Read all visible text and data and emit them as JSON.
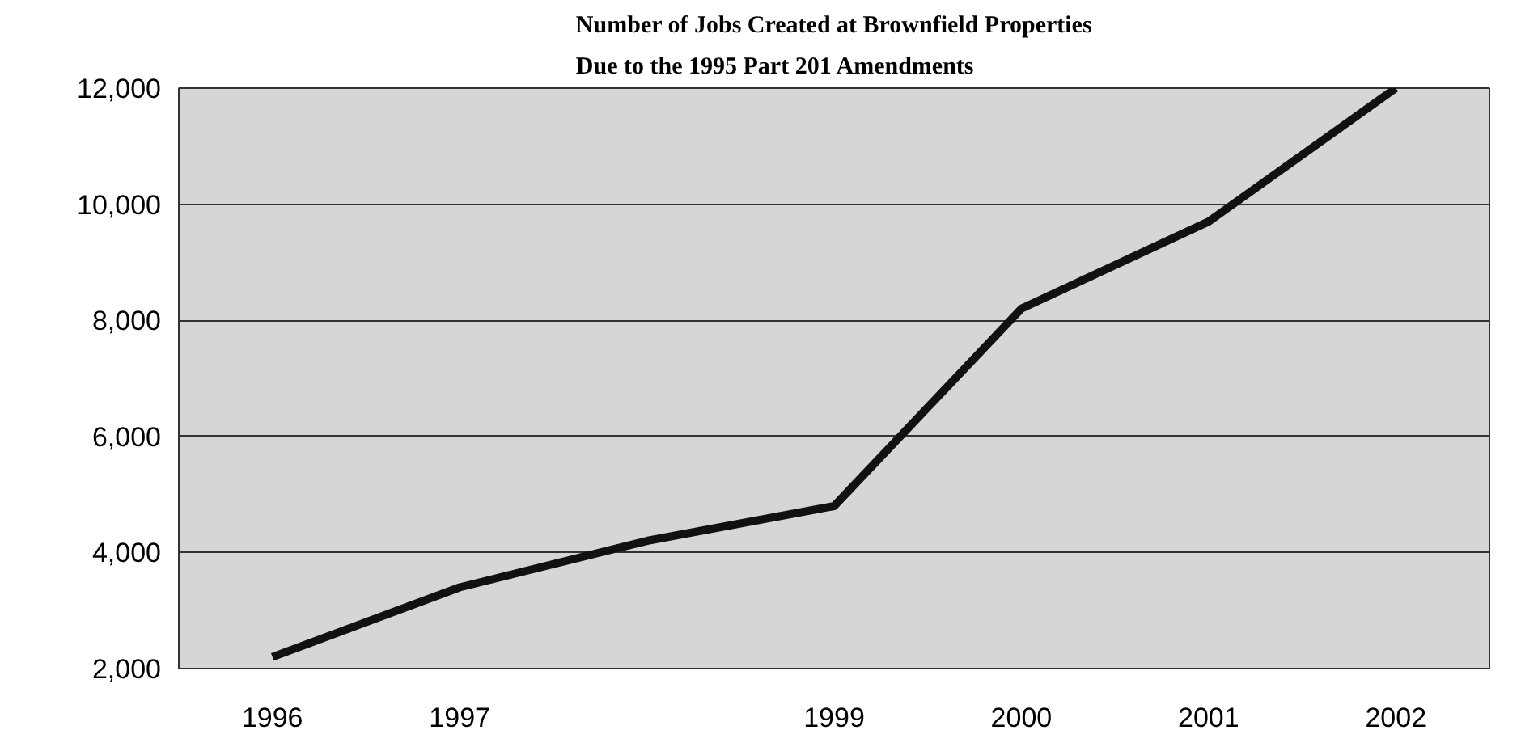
{
  "chart_data": {
    "type": "line",
    "title": "Number of Jobs Created at Brownfield Properties\nDue to the 1995 Part 201 Amendments",
    "categories": [
      "1996",
      "1997",
      null,
      "1999",
      "2000",
      "2001",
      "2002"
    ],
    "series": [
      {
        "color": "#111111",
        "values": [
          2200,
          3400,
          4200,
          4800,
          8200,
          9700,
          12000
        ]
      }
    ],
    "ylim": [
      2000,
      12000
    ],
    "yticks": [
      {
        "value": 2000,
        "label": "2,000"
      },
      {
        "value": 4000,
        "label": "4,000"
      },
      {
        "value": 6000,
        "label": "6,000"
      },
      {
        "value": 8000,
        "label": "8,000"
      },
      {
        "value": 10000,
        "label": "10,000"
      },
      {
        "value": 12000,
        "label": "12,000"
      }
    ],
    "grid": "y",
    "marker": "none",
    "line_style": "solid"
  }
}
